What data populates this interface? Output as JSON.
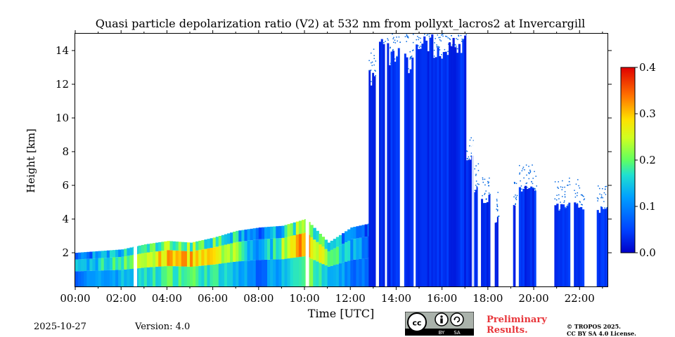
{
  "chart_data": {
    "type": "heatmap",
    "title": "Quasi particle depolarization ratio (V2) at 532 nm from pollyxt_lacros2 at Invercargill",
    "xlabel": "Time [UTC]",
    "ylabel": "Height [km]",
    "x_ticks": [
      "00:00",
      "02:00",
      "04:00",
      "06:00",
      "08:00",
      "10:00",
      "12:00",
      "14:00",
      "16:00",
      "18:00",
      "20:00",
      "22:00"
    ],
    "x_tick_hours": [
      0,
      2,
      4,
      6,
      8,
      10,
      12,
      14,
      16,
      18,
      20,
      22
    ],
    "xlim_hours": [
      0,
      23.25
    ],
    "y_ticks": [
      2,
      4,
      6,
      8,
      10,
      12,
      14
    ],
    "ylim": [
      0,
      15
    ],
    "colorbar": {
      "ticks": [
        "0.0",
        "0.1",
        "0.2",
        "0.3",
        "0.4"
      ],
      "tick_values": [
        0.0,
        0.1,
        0.2,
        0.3,
        0.4
      ],
      "range": [
        0.0,
        0.4
      ],
      "colormap": "jet"
    },
    "data_gaps_hours": [
      [
        2.55,
        2.7
      ],
      [
        10.05,
        10.2
      ],
      [
        17.3,
        17.35
      ],
      [
        21.6,
        21.75
      ]
    ],
    "cloud_columns": [
      {
        "t0": 12.8,
        "t1": 13.1,
        "top_km": 13.0
      },
      {
        "t0": 13.25,
        "t1": 13.5,
        "top_km": 14.8
      },
      {
        "t0": 13.6,
        "t1": 14.15,
        "top_km": 14.5
      },
      {
        "t0": 14.35,
        "t1": 14.75,
        "top_km": 14.0
      },
      {
        "t0": 14.85,
        "t1": 17.05,
        "top_km": 15.0
      },
      {
        "t0": 17.05,
        "t1": 17.35,
        "top_km": 8.0
      },
      {
        "t0": 17.4,
        "t1": 17.55,
        "top_km": 6.2
      },
      {
        "t0": 17.7,
        "t1": 18.1,
        "top_km": 5.5
      },
      {
        "t0": 18.3,
        "t1": 18.45,
        "top_km": 4.2
      },
      {
        "t0": 19.1,
        "t1": 19.2,
        "top_km": 5.0
      },
      {
        "t0": 19.35,
        "t1": 20.1,
        "top_km": 6.0
      },
      {
        "t0": 20.9,
        "t1": 21.6,
        "top_km": 5.0
      },
      {
        "t0": 21.75,
        "t1": 22.2,
        "top_km": 5.0
      },
      {
        "t0": 22.75,
        "t1": 23.25,
        "top_km": 4.8
      }
    ],
    "boundary_layer": [
      {
        "hour": 0.0,
        "top_km": 2.0,
        "depol": 0.12
      },
      {
        "hour": 1.0,
        "top_km": 2.1,
        "depol": 0.15
      },
      {
        "hour": 2.0,
        "top_km": 2.2,
        "depol": 0.2
      },
      {
        "hour": 3.0,
        "top_km": 2.5,
        "depol": 0.24
      },
      {
        "hour": 4.0,
        "top_km": 2.7,
        "depol": 0.3
      },
      {
        "hour": 5.0,
        "top_km": 2.6,
        "depol": 0.3
      },
      {
        "hour": 6.0,
        "top_km": 2.9,
        "depol": 0.26
      },
      {
        "hour": 7.0,
        "top_km": 3.3,
        "depol": 0.2
      },
      {
        "hour": 8.0,
        "top_km": 3.5,
        "depol": 0.1
      },
      {
        "hour": 9.0,
        "top_km": 3.6,
        "depol": 0.22
      },
      {
        "hour": 10.0,
        "top_km": 4.0,
        "depol": 0.34
      },
      {
        "hour": 11.0,
        "top_km": 2.6,
        "depol": 0.2
      },
      {
        "hour": 12.0,
        "top_km": 3.5,
        "depol": 0.12
      },
      {
        "hour": 13.0,
        "top_km": 3.8,
        "depol": 0.08
      }
    ]
  },
  "footer": {
    "date": "2025-10-27",
    "version": "Version: 4.0",
    "prelim": "Preliminary Results.",
    "copyright_line1": "© TROPOS 2025.",
    "copyright_line2": "CC BY SA 4.0 License.",
    "badge_by": "BY",
    "badge_sa": "SA"
  }
}
